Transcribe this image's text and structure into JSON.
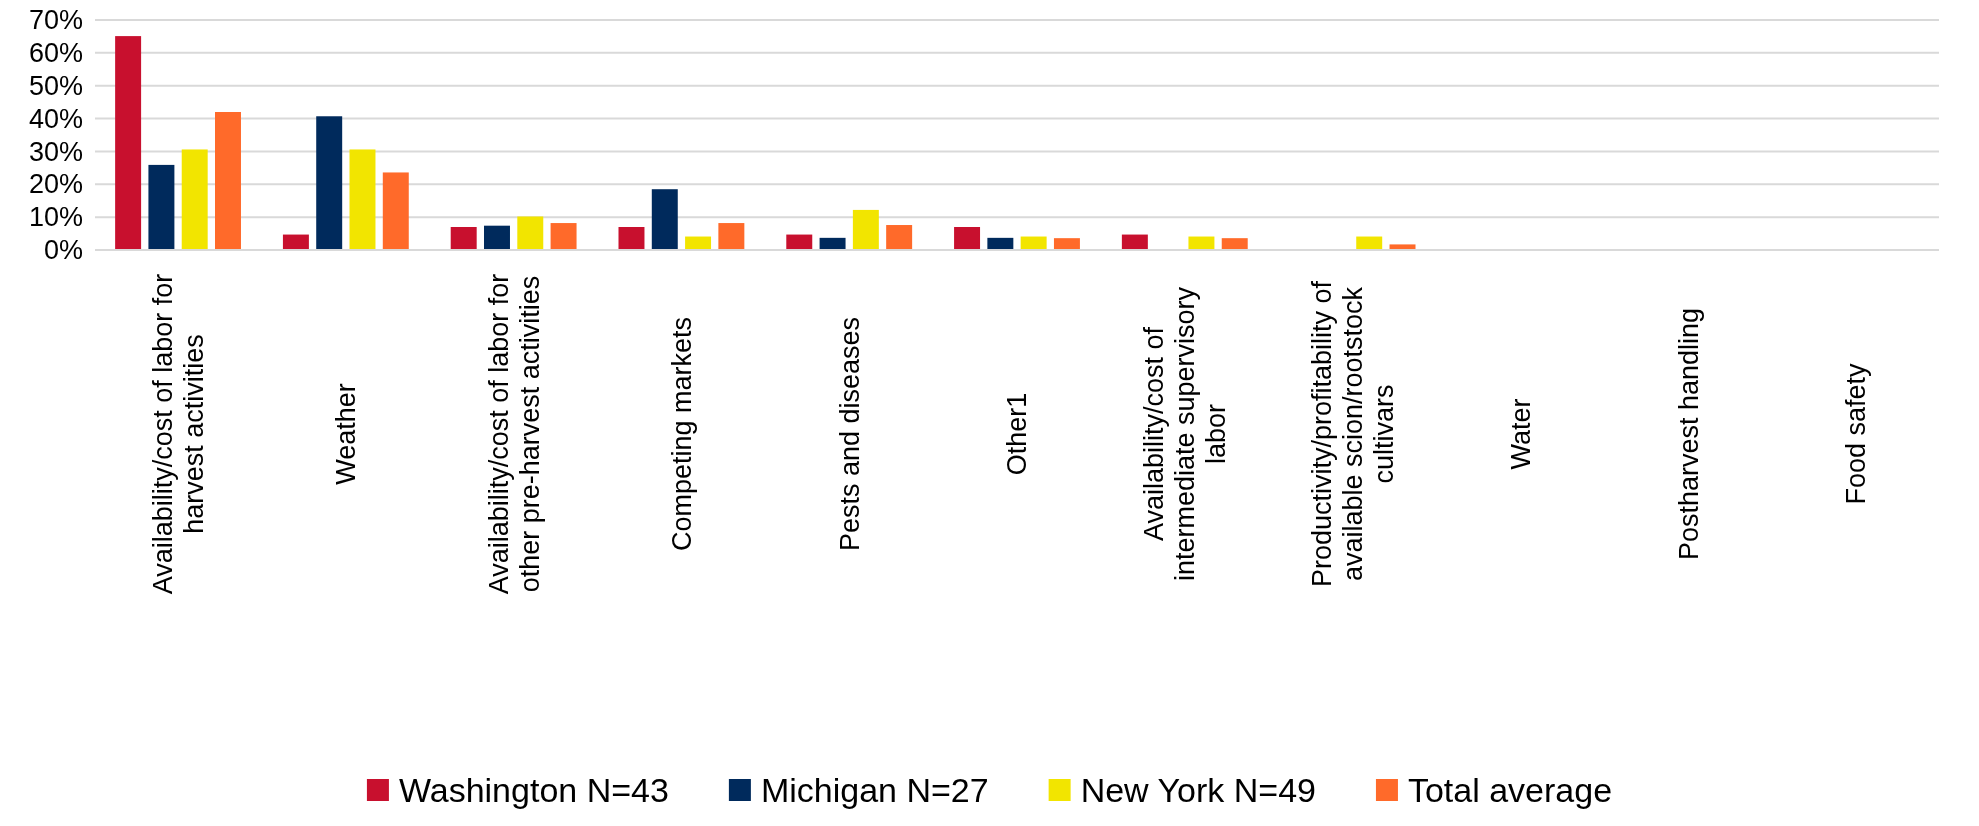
{
  "chart_data": {
    "type": "bar",
    "categories": [
      "Availability/cost of labor for harvest activities",
      "Weather",
      "Availability/cost of labor for other pre-harvest activities",
      "Competing markets",
      "Pests and diseases",
      "Other1",
      "Availability/cost of intermediate supervisory labor",
      "Productivity/profitability of available scion/rootstock cultivars",
      "Water",
      "Postharvest handling",
      "Food safety"
    ],
    "series": [
      {
        "name": "Washington N=43",
        "color": "#c8102e",
        "values": [
          65.1,
          4.7,
          7.0,
          7.0,
          4.7,
          7.0,
          4.7,
          0,
          0,
          0,
          0
        ]
      },
      {
        "name": "Michigan N=27",
        "color": "#002a5c",
        "values": [
          25.9,
          40.7,
          7.4,
          18.5,
          3.7,
          3.7,
          0,
          0,
          0,
          0,
          0
        ]
      },
      {
        "name": "New York N=49",
        "color": "#f2e500",
        "values": [
          30.6,
          30.6,
          10.2,
          4.1,
          12.2,
          4.1,
          4.1,
          4.1,
          0,
          0,
          0
        ]
      },
      {
        "name": "Total average",
        "color": "#ff6a2a",
        "values": [
          42.0,
          23.6,
          8.2,
          8.2,
          7.6,
          3.6,
          3.6,
          1.7,
          0,
          0,
          0
        ]
      }
    ],
    "ylim": [
      0,
      70
    ],
    "yticks": [
      {
        "value": 0,
        "label": "0%"
      },
      {
        "value": 10,
        "label": "10%"
      },
      {
        "value": 20,
        "label": "20%"
      },
      {
        "value": 30,
        "label": "30%"
      },
      {
        "value": 40,
        "label": "40%"
      },
      {
        "value": 50,
        "label": "50%"
      },
      {
        "value": 60,
        "label": "60%"
      },
      {
        "value": 70,
        "label": "70%"
      }
    ],
    "grid": "y",
    "legend": "bottom"
  }
}
